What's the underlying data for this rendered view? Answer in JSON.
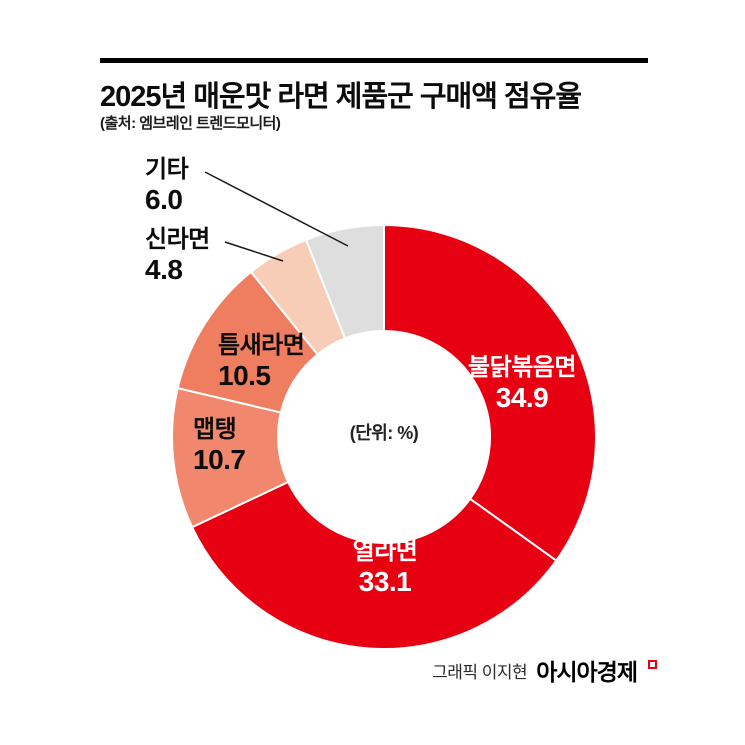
{
  "header": {
    "title": "2025년 매운맛 라면 제품군 구매액 점유율",
    "source": "(출처: 엠브레인 트렌드모니터)"
  },
  "chart_data": {
    "type": "pie",
    "subtype": "donut",
    "title": "2025년 매운맛 라면 제품군 구매액 점유율",
    "source": "엠브레인 트렌드모니터",
    "unit_note": "(단위: %)",
    "start_angle_deg": 0,
    "direction": "clockwise",
    "total": 100,
    "legend_position": "around-donut",
    "segments": [
      {
        "key": "buldak",
        "label": "불닭볶음면",
        "value": 34.9,
        "display": "34.9",
        "color": "#e60012",
        "label_placement": "inside"
      },
      {
        "key": "yeol",
        "label": "열라면",
        "value": 33.1,
        "display": "33.1",
        "color": "#e60012",
        "label_placement": "inside"
      },
      {
        "key": "maeptang",
        "label": "맵탱",
        "value": 10.7,
        "display": "10.7",
        "color": "#f1876c",
        "label_placement": "outside"
      },
      {
        "key": "teumsae",
        "label": "틈새라면",
        "value": 10.5,
        "display": "10.5",
        "color": "#ef7d5f",
        "label_placement": "outside"
      },
      {
        "key": "shin",
        "label": "신라면",
        "value": 4.8,
        "display": "4.8",
        "color": "#f8cdb8",
        "label_placement": "outside"
      },
      {
        "key": "etc",
        "label": "기타",
        "value": 6.0,
        "display": "6.0",
        "color": "#dedede",
        "label_placement": "outside"
      }
    ]
  },
  "footer": {
    "credit": "그래픽 이지현",
    "brand": "아시아경제"
  }
}
